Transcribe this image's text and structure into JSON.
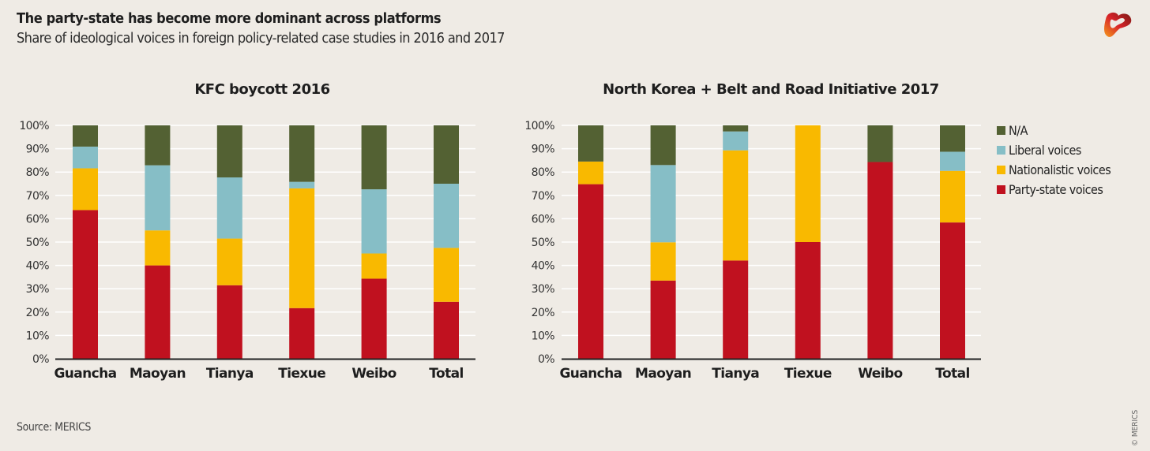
{
  "header": {
    "title": "The party-state has become more dominant across platforms",
    "subtitle": "Share of ideological voices in foreign policy-related case studies in 2016 and 2017"
  },
  "footer": {
    "source": "Source: MERICS",
    "copyright": "© MERICS"
  },
  "logo": "merics-logo-icon",
  "colors": {
    "party_state": "#c0111f",
    "nationalistic": "#f9b900",
    "liberal": "#86bec6",
    "na": "#536133",
    "background": "#efebe5"
  },
  "legend": [
    {
      "label": "N/A",
      "key": "na"
    },
    {
      "label": "Liberal voices",
      "key": "liberal"
    },
    {
      "label": "Nationalistic voices",
      "key": "nationalistic"
    },
    {
      "label": "Party-state voices",
      "key": "party_state"
    }
  ],
  "chart_data": [
    {
      "type": "bar",
      "stacked": true,
      "title": "KFC boycott 2016",
      "xlabel": "",
      "ylabel": "",
      "ylim": [
        0,
        100
      ],
      "yticks": [
        "0%",
        "10%",
        "20%",
        "30%",
        "40%",
        "50%",
        "60%",
        "70%",
        "80%",
        "90%",
        "100%"
      ],
      "grid": true,
      "legend_position": "right",
      "categories": [
        "Guancha",
        "Maoyan",
        "Tianya",
        "Tiexue",
        "Weibo",
        "Total"
      ],
      "series": [
        {
          "name": "Party-state voices",
          "key": "party_state",
          "values": [
            63.7,
            40.0,
            31.5,
            21.7,
            34.3,
            24.4
          ]
        },
        {
          "name": "Nationalistic voices",
          "key": "nationalistic",
          "values": [
            17.9,
            15.0,
            20.0,
            51.3,
            10.8,
            23.1
          ]
        },
        {
          "name": "Liberal voices",
          "key": "liberal",
          "values": [
            9.3,
            27.9,
            26.2,
            2.8,
            27.5,
            27.5
          ]
        },
        {
          "name": "N/A",
          "key": "na",
          "values": [
            9.1,
            17.1,
            22.3,
            24.2,
            27.4,
            25.0
          ]
        }
      ]
    },
    {
      "type": "bar",
      "stacked": true,
      "title": "North Korea + Belt and Road Initiative 2017",
      "xlabel": "",
      "ylabel": "",
      "ylim": [
        0,
        100
      ],
      "yticks": [
        "0%",
        "10%",
        "20%",
        "30%",
        "40%",
        "50%",
        "60%",
        "70%",
        "80%",
        "90%",
        "100%"
      ],
      "grid": true,
      "legend_position": "right",
      "categories": [
        "Guancha",
        "Maoyan",
        "Tianya",
        "Tiexue",
        "Weibo",
        "Total"
      ],
      "series": [
        {
          "name": "Party-state voices",
          "key": "party_state",
          "values": [
            74.8,
            33.5,
            42.1,
            50.0,
            84.3,
            58.4
          ]
        },
        {
          "name": "Nationalistic voices",
          "key": "nationalistic",
          "values": [
            9.7,
            16.4,
            47.2,
            50.0,
            0,
            22.1
          ]
        },
        {
          "name": "Liberal voices",
          "key": "liberal",
          "values": [
            0,
            33.1,
            8.1,
            0,
            0,
            8.2
          ]
        },
        {
          "name": "N/A",
          "key": "na",
          "values": [
            15.5,
            17.0,
            2.6,
            0,
            15.7,
            11.3
          ]
        }
      ]
    }
  ]
}
